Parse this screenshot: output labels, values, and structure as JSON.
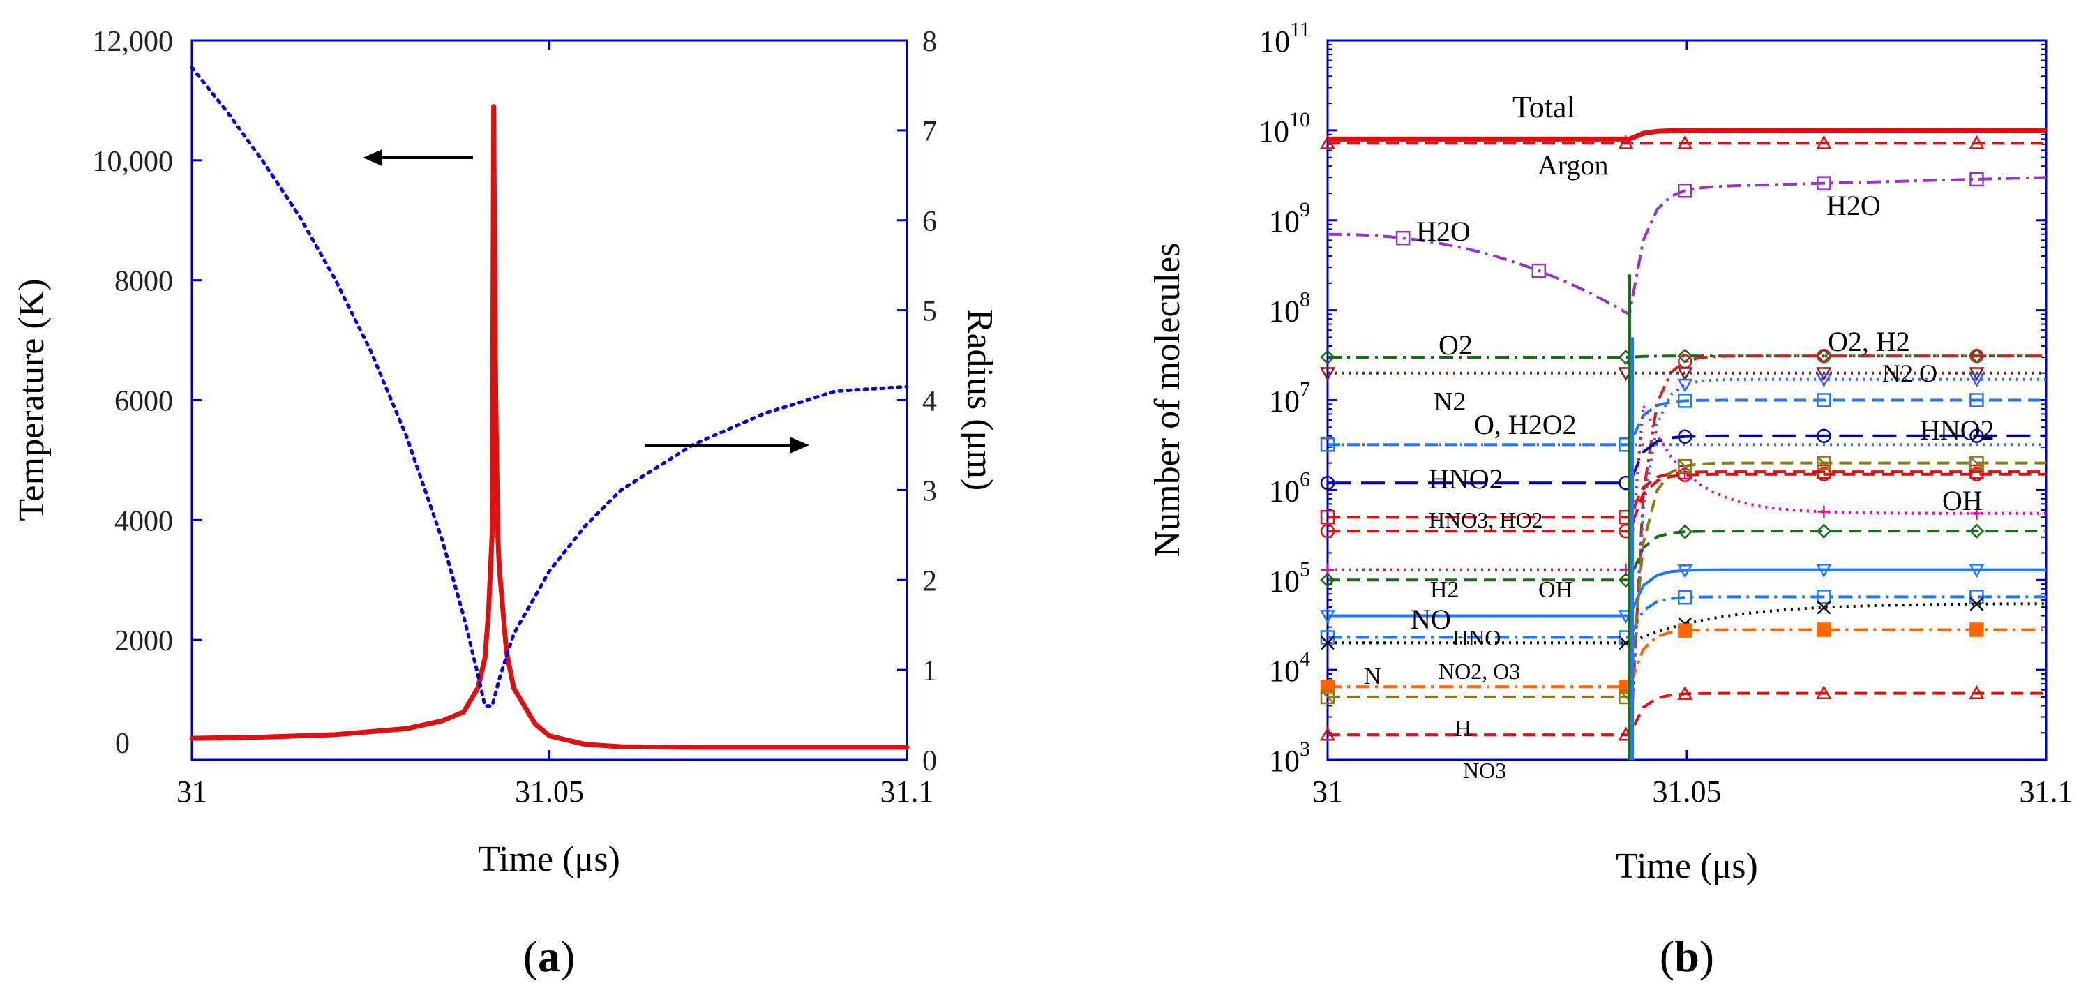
{
  "chart_data": [
    {
      "panel": "a",
      "type": "line",
      "caption": "(a)",
      "xlabel": "Time (μs)",
      "ylabel_left": "Temperature (K)",
      "ylabel_right": "Radius (μm)",
      "xlim": [
        31,
        31.1
      ],
      "ylim_left": [
        0,
        12000
      ],
      "ylim_right": [
        0,
        8
      ],
      "x_ticks": [
        31,
        31.05,
        31.1
      ],
      "x_tick_labels": [
        "31",
        "31.05",
        "31.1"
      ],
      "y_left_ticks": [
        0,
        2000,
        4000,
        6000,
        8000,
        10000,
        12000
      ],
      "y_left_tick_labels": [
        "0",
        "2000",
        "4000",
        "6000",
        "8000",
        "10,000",
        "12,000"
      ],
      "y_right_ticks": [
        0,
        1,
        2,
        3,
        4,
        5,
        6,
        7,
        8
      ],
      "y_right_tick_labels": [
        "0",
        "1",
        "2",
        "3",
        "4",
        "5",
        "6",
        "7",
        "8"
      ],
      "series": [
        {
          "name": "Temperature",
          "axis": "left",
          "color": "#dd1111",
          "style": "solid",
          "x": [
            31,
            31.01,
            31.02,
            31.03,
            31.035,
            31.038,
            31.04,
            31.041,
            31.0415,
            31.042,
            31.0422,
            31.0425,
            31.0428,
            31.043,
            31.0435,
            31.044,
            31.045,
            31.048,
            31.05,
            31.055,
            31.06,
            31.07,
            31.08,
            31.09,
            31.1
          ],
          "y": [
            360,
            380,
            420,
            520,
            650,
            800,
            1200,
            1700,
            2500,
            3800,
            10900,
            6000,
            3700,
            3200,
            2500,
            1800,
            1200,
            600,
            400,
            260,
            220,
            210,
            210,
            210,
            210
          ]
        },
        {
          "name": "Radius",
          "axis": "right",
          "color": "#0000dd",
          "style": "dotted",
          "x": [
            31,
            31.005,
            31.01,
            31.015,
            31.02,
            31.025,
            31.03,
            31.035,
            31.038,
            31.04,
            31.041,
            31.042,
            31.043,
            31.045,
            31.05,
            31.055,
            31.06,
            31.07,
            31.08,
            31.09,
            31.1
          ],
          "y": [
            7.7,
            7.2,
            6.65,
            6.05,
            5.35,
            4.55,
            3.6,
            2.45,
            1.6,
            0.95,
            0.6,
            0.6,
            0.9,
            1.4,
            2.1,
            2.6,
            3.0,
            3.5,
            3.85,
            4.1,
            4.15
          ]
        }
      ],
      "annotations": [
        {
          "text": "←",
          "meaning": "arrow pointing to left axis (Temperature)"
        },
        {
          "text": "→",
          "meaning": "arrow pointing to right axis (Radius)"
        }
      ]
    },
    {
      "panel": "b",
      "type": "line",
      "caption": "(b)",
      "xlabel": "Time (μs)",
      "ylabel": "Number of molecules",
      "yscale": "log",
      "xlim": [
        31,
        31.1
      ],
      "ylim": [
        1000,
        100000000000
      ],
      "x_ticks": [
        31,
        31.05,
        31.1
      ],
      "x_tick_labels": [
        "31",
        "31.05",
        "31.1"
      ],
      "y_tick_exponents": [
        3,
        4,
        5,
        6,
        7,
        8,
        9,
        10,
        11
      ],
      "y_tick_base": "10",
      "t_collapse": 31.042,
      "labels": {
        "total": "Total",
        "argon": "Argon",
        "h2o_1": "H2O",
        "h2o_2": "H2O",
        "o2": "O2",
        "o2h2": "O2, H2",
        "n2o": "N2 O",
        "n2": "N2",
        "oh2o2": "O, H2O2",
        "hno2_1": "HNO2",
        "hno2_2": "HNO2",
        "hno3ho2": "HNO3, HO2",
        "oh_1": "OH",
        "oh_2": "OH",
        "h2": "H2",
        "no": "NO",
        "hno": "HNO",
        "no2o3": "NO2, O3",
        "n": "N",
        "h": "H",
        "no3": "NO3"
      },
      "series": [
        {
          "name": "Total",
          "color": "#dd1111",
          "style": "solid",
          "marker": "none",
          "before": 8000000000.0,
          "after": 10000000000.0
        },
        {
          "name": "Argon",
          "color": "#dd1111",
          "style": "dashed",
          "marker": "triangle",
          "before": 7200000000.0,
          "after": 7200000000.0
        },
        {
          "name": "H2O",
          "color": "#9933cc",
          "style": "dashdot",
          "marker": "square",
          "before_start": 700000000.0,
          "before_end": 90000000.0,
          "after_end": 3000000000.0
        },
        {
          "name": "O2",
          "color": "#1a6b1a",
          "style": "dashdot",
          "marker": "diamond",
          "before": 30000000.0,
          "after": 31000000.0
        },
        {
          "name": "H2",
          "color": "#cc2222",
          "style": "dashdot",
          "marker": "circle",
          "before": null,
          "after": 31000000.0
        },
        {
          "name": "N2",
          "color": "#8b1a1a",
          "style": "dotted",
          "marker": "triangle-down",
          "before": 20000000.0,
          "after": 20000000.0
        },
        {
          "name": "N2O",
          "color": "#3366ff",
          "style": "dotted",
          "marker": "triangle-down",
          "before": null,
          "after": 17000000.0
        },
        {
          "name": "O",
          "color": "#1e78ff",
          "style": "dashed",
          "marker": "square",
          "before": 3200000.0,
          "after": 10000000.0
        },
        {
          "name": "H2O2",
          "color": "#1e78ff",
          "style": "dotted",
          "marker": "none",
          "before": 3200000.0,
          "after": 3200000.0
        },
        {
          "name": "HNO2",
          "color": "#0000aa",
          "style": "longdash",
          "marker": "circle",
          "before": 1200000.0,
          "after": 4000000.0
        },
        {
          "name": "HNO3",
          "color": "#dd1111",
          "style": "dashed",
          "marker": "square",
          "before": 500000.0,
          "after": 1600000.0
        },
        {
          "name": "HO2",
          "color": "#dd1111",
          "style": "dashed",
          "marker": "circle",
          "before": 350000.0,
          "after": 1500000.0
        },
        {
          "name": "OH",
          "color": "#e600aa",
          "style": "dotted",
          "marker": "plus",
          "before": 130000.0,
          "after_end": 550000.0
        },
        {
          "name": "NO",
          "color": "#1a6b1a",
          "style": "dashed",
          "marker": "diamond",
          "before": 100000.0,
          "after": 350000.0
        },
        {
          "name": "HNO",
          "color": "#1e78ff",
          "style": "solid",
          "marker": "triangle-down",
          "before": 40000.0,
          "after": 130000.0
        },
        {
          "name": "NO2",
          "color": "#1e78ff",
          "style": "dashdot",
          "marker": "square",
          "before": 23000.0,
          "after_end": 65000.0
        },
        {
          "name": "O3",
          "color": "#000000",
          "style": "dotted",
          "marker": "cross",
          "before": 20000.0,
          "after_end": 55000.0
        },
        {
          "name": "N",
          "color": "#ff6600",
          "style": "dashdot",
          "marker": "square-filled",
          "before": 6500.0,
          "after": 28000.0
        },
        {
          "name": "H",
          "color": "#8b7a1a",
          "style": "dashed",
          "marker": "square-x",
          "before": 5000.0,
          "after": 2000000.0
        },
        {
          "name": "NO3",
          "color": "#dd1111",
          "style": "dashed",
          "marker": "triangle",
          "before": 1900.0,
          "after": 5500.0
        }
      ]
    }
  ]
}
